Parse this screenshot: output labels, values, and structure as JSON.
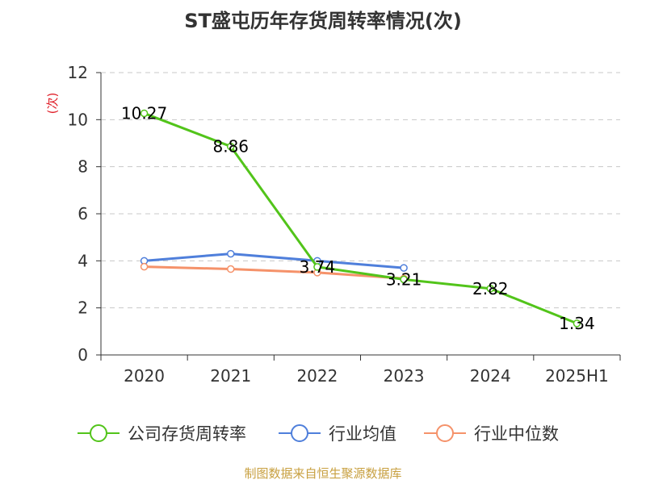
{
  "chart_data": {
    "type": "line",
    "title": "ST盛屯历年存货周转率情况(次)",
    "ylabel": "(次)",
    "xlabel": "",
    "categories": [
      "2020",
      "2021",
      "2022",
      "2023",
      "2024",
      "2025H1"
    ],
    "ylim": [
      0,
      12
    ],
    "yticks": [
      0,
      2,
      4,
      6,
      8,
      10,
      12
    ],
    "grid": true,
    "legend_position": "bottom",
    "series": [
      {
        "name": "公司存货周转率",
        "color": "#52c41a",
        "values": [
          10.27,
          8.86,
          3.74,
          3.21,
          2.82,
          1.34
        ],
        "labels": [
          "10.27",
          "8.86",
          "3.74",
          "3.21",
          "2.82",
          "1.34"
        ]
      },
      {
        "name": "行业均值",
        "color": "#4f7fdb",
        "values": [
          4.0,
          4.3,
          4.0,
          3.7,
          null,
          null
        ]
      },
      {
        "name": "行业中位数",
        "color": "#f5926a",
        "values": [
          3.75,
          3.65,
          3.5,
          3.25,
          null,
          null
        ]
      }
    ]
  },
  "footer": "制图数据来自恒生聚源数据库"
}
